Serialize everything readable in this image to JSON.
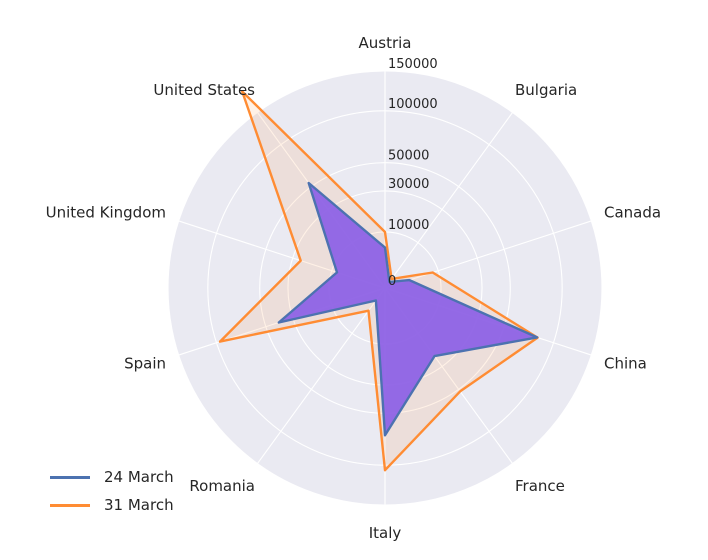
{
  "chart_data": {
    "type": "radar",
    "title": "",
    "categories": [
      "Austria",
      "Bulgaria",
      "Canada",
      "China",
      "France",
      "Italy",
      "Romania",
      "Spain",
      "United Kingdom",
      "United States"
    ],
    "r_ticks": [
      0,
      10000,
      30000,
      50000,
      100000,
      150000
    ],
    "r_tick_labels": [
      "0",
      "10000",
      "30000",
      "50000",
      "100000",
      "150000"
    ],
    "rlim": [
      0,
      150000
    ],
    "grid": true,
    "legend_position": "lower-left",
    "series": [
      {
        "name": "24 March",
        "color": "#4c72b0",
        "values": [
          5200,
          180,
          2100,
          81500,
          22600,
          69100,
          760,
          39700,
          8100,
          53700
        ]
      },
      {
        "name": "31 March",
        "color": "#ff8c33",
        "values": [
          10000,
          400,
          8000,
          82000,
          52000,
          105800,
          2500,
          95900,
          25000,
          188000
        ]
      }
    ]
  }
}
